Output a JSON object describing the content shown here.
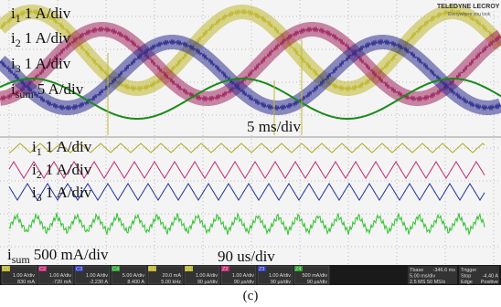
{
  "upper_labels": [
    {
      "symbol": "i",
      "sub": "1",
      "scale": "1 A/div"
    },
    {
      "symbol": "i",
      "sub": "2",
      "scale": "1 A/div"
    },
    {
      "symbol": "i",
      "sub": "3",
      "scale": "1 A/div"
    },
    {
      "symbol": "i",
      "sub": "sum",
      "scale": "5 A/div"
    }
  ],
  "upper_timebase": "5 ms/div",
  "lower_labels": [
    {
      "symbol": "i",
      "sub": "1",
      "scale": "1 A/div"
    },
    {
      "symbol": "i",
      "sub": "2",
      "scale": "1 A/div"
    },
    {
      "symbol": "i",
      "sub": "3",
      "scale": "1 A/div"
    },
    {
      "symbol": "i",
      "sub": "sum",
      "scale": "500 mA/div"
    }
  ],
  "lower_timebase": "90 us/div",
  "logo": {
    "brand": "TELEDYNE LECROY",
    "tagline": "Everywhere you look"
  },
  "status_bar": {
    "channels": [
      {
        "tag": "C1",
        "line1": "1.00 A/div",
        "line2": "830 mA"
      },
      {
        "tag": "C2",
        "line1": "1.00 A/div",
        "line2": "-720 mA"
      },
      {
        "tag": "C3",
        "line1": "1.00 A/div",
        "line2": "-2.230 A"
      },
      {
        "tag": "C4",
        "line1": "5.00 A/div",
        "line2": "8.400 A"
      },
      {
        "tag": "F1",
        "line1": "20.0 mA",
        "line2": "5.00 kHz"
      },
      {
        "tag": "Z1",
        "line1": "1.00 A/div",
        "line2": "90 µs/div"
      },
      {
        "tag": "Z2",
        "line1": "1.00 A/div",
        "line2": "90 µs/div"
      },
      {
        "tag": "Z3",
        "line1": "1.00 A/div",
        "line2": "90 µs/div"
      },
      {
        "tag": "Z4",
        "line1": "500 mA/div",
        "line2": "90 µs/div"
      }
    ],
    "timebase": {
      "title": "Tbase",
      "offset": "-346.6 ms",
      "div": "5.00 ms/div",
      "rate": "2.5 MS  50 MS/s"
    },
    "trigger": {
      "title": "Trigger",
      "mode": "Stop",
      "level": "-4.40 A",
      "type": "Edge",
      "slope": "Positive"
    }
  },
  "caption": "(c)"
}
